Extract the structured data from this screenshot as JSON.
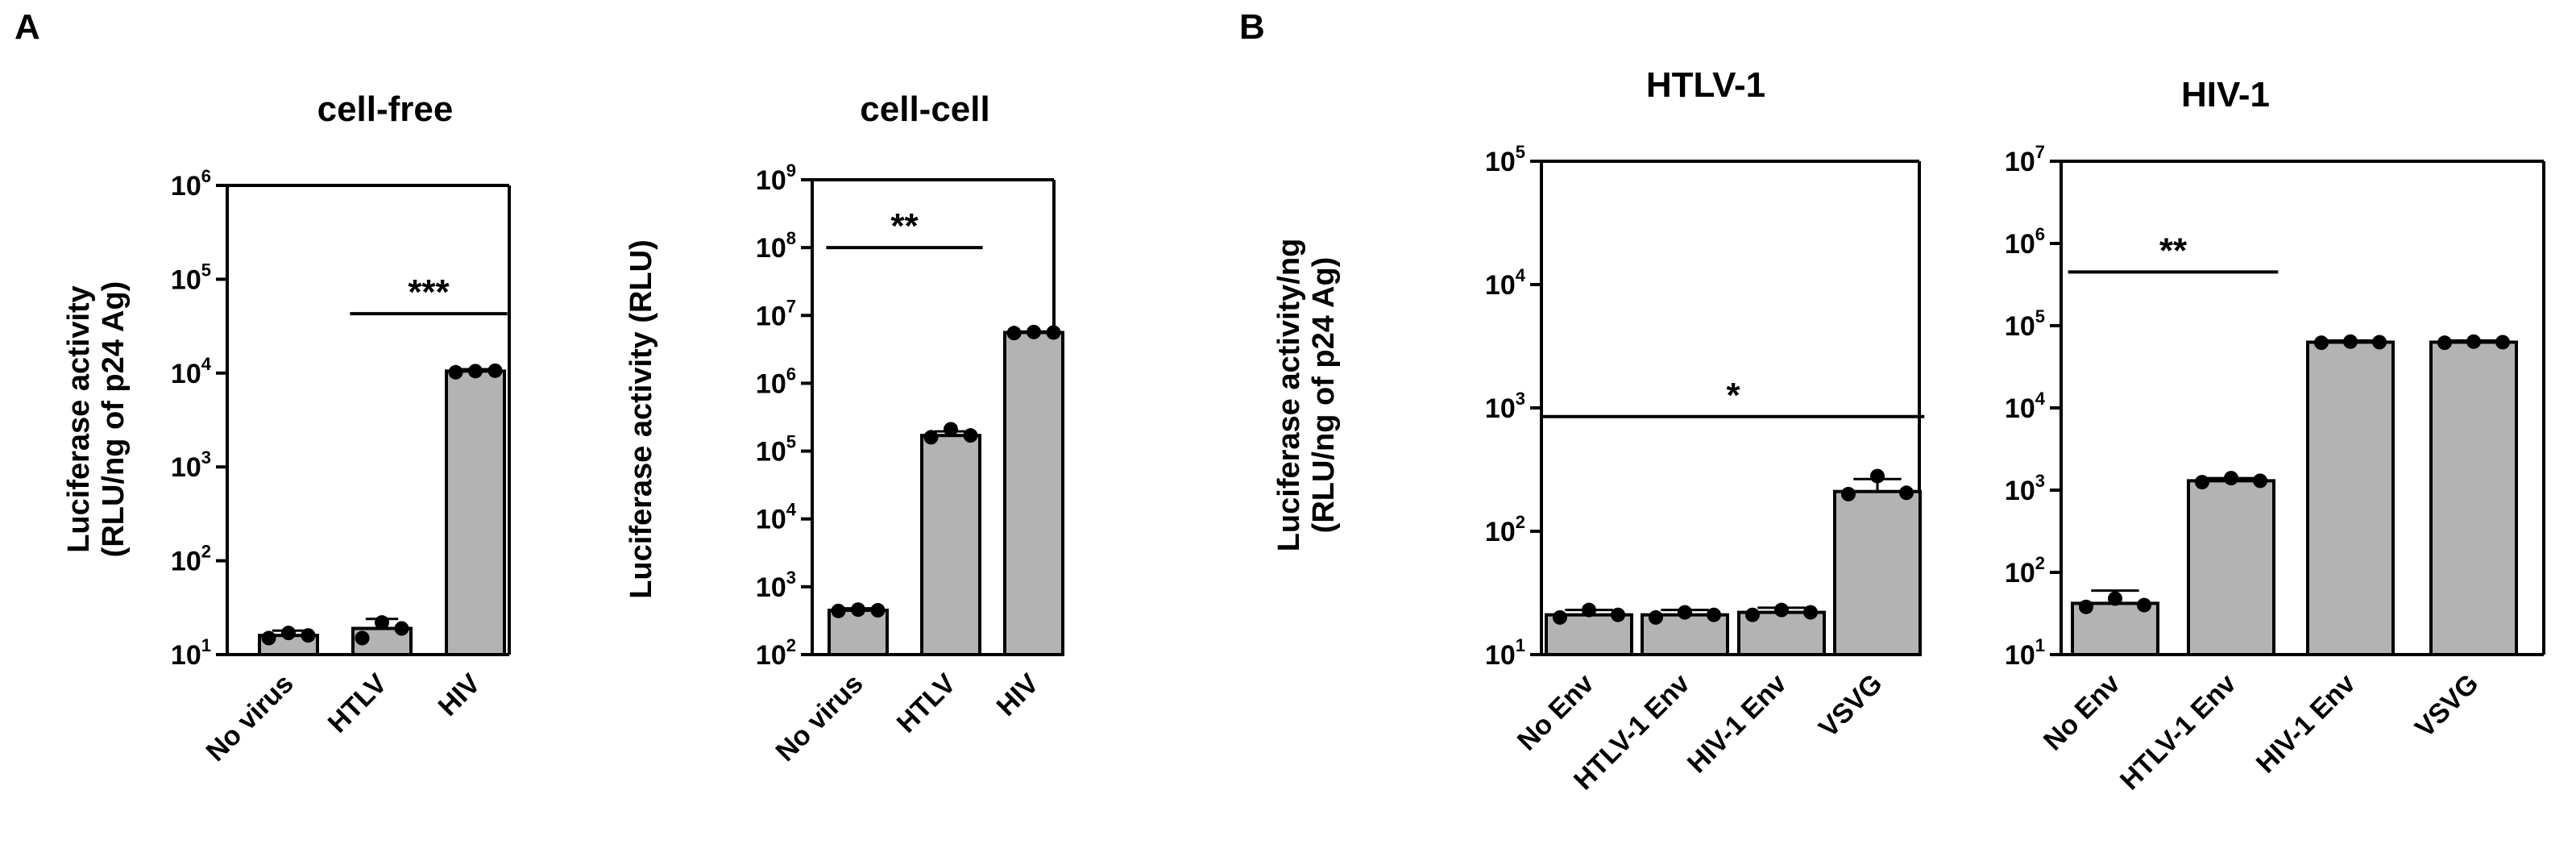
{
  "panels": [
    {
      "id": "A",
      "label": "A"
    },
    {
      "id": "B",
      "label": "B"
    }
  ],
  "chart_data": [
    {
      "type": "bar",
      "panel": "A",
      "title": "cell-free",
      "ylabel": [
        "Luciferase activity",
        "(RLU/ng of p24 Ag)"
      ],
      "yscale": "log",
      "ylim": [
        10,
        1000000
      ],
      "yticks": [
        1,
        2,
        3,
        4,
        5,
        6
      ],
      "categories": [
        "No virus",
        "HTLV",
        "HIV"
      ],
      "values": [
        16,
        19,
        10500
      ],
      "error_upper": [
        18,
        24,
        11000
      ],
      "points": [
        [
          15,
          17,
          16
        ],
        [
          15,
          22,
          19
        ],
        [
          10200,
          10500,
          10600
        ]
      ],
      "significance": [
        {
          "from": 1,
          "to": 2,
          "label": "***",
          "y": 43000
        }
      ]
    },
    {
      "type": "bar",
      "panel": "A",
      "title": "cell-cell",
      "ylabel": [
        "Luciferase activity (RLU)"
      ],
      "yscale": "log",
      "ylim": [
        100,
        1000000000
      ],
      "yticks": [
        2,
        3,
        4,
        5,
        6,
        7,
        8,
        9
      ],
      "categories": [
        "No virus",
        "HTLV",
        "HIV"
      ],
      "values": [
        450,
        170000,
        5600000
      ],
      "error_upper": [
        480,
        195000,
        5800000
      ],
      "points": [
        [
          440,
          460,
          450
        ],
        [
          160000,
          210000,
          170000
        ],
        [
          5500000,
          5700000,
          5600000
        ]
      ],
      "significance": [
        {
          "from": 0,
          "to": 1,
          "label": "**",
          "y": 100000000
        }
      ]
    },
    {
      "type": "bar",
      "panel": "B",
      "title": "HTLV-1",
      "ylabel": [
        "Luciferase activity/ng",
        "(RLU/ng of p24 Ag)"
      ],
      "yscale": "log",
      "ylim": [
        10,
        100000
      ],
      "yticks": [
        1,
        2,
        3,
        4,
        5
      ],
      "categories": [
        "No Env",
        "HTLV-1 Env",
        "HIV-1 Env",
        "VSVG"
      ],
      "values": [
        21,
        21,
        22,
        210
      ],
      "error_upper": [
        23,
        23,
        24,
        265
      ],
      "points": [
        [
          20,
          23,
          21
        ],
        [
          20,
          22,
          21
        ],
        [
          21,
          23,
          22
        ],
        [
          200,
          280,
          205
        ]
      ],
      "significance": [
        {
          "from": 0,
          "to": 3,
          "label": "*",
          "y": 850
        }
      ]
    },
    {
      "type": "bar",
      "panel": "B",
      "title": "HIV-1",
      "ylabel": [],
      "yscale": "log",
      "ylim": [
        10,
        10000000
      ],
      "yticks": [
        1,
        2,
        3,
        4,
        5,
        6,
        7
      ],
      "categories": [
        "No Env",
        "HTLV-1 Env",
        "HIV-1 Env",
        "VSVG"
      ],
      "values": [
        42,
        1300,
        63000,
        63000
      ],
      "error_upper": [
        60,
        1400,
        66000,
        66000
      ],
      "points": [
        [
          38,
          48,
          40
        ],
        [
          1250,
          1400,
          1300
        ],
        [
          62000,
          64000,
          63000
        ],
        [
          62000,
          64000,
          63000
        ]
      ],
      "significance": [
        {
          "from": 0,
          "to": 1,
          "label": "**",
          "y": 450000
        }
      ]
    }
  ]
}
